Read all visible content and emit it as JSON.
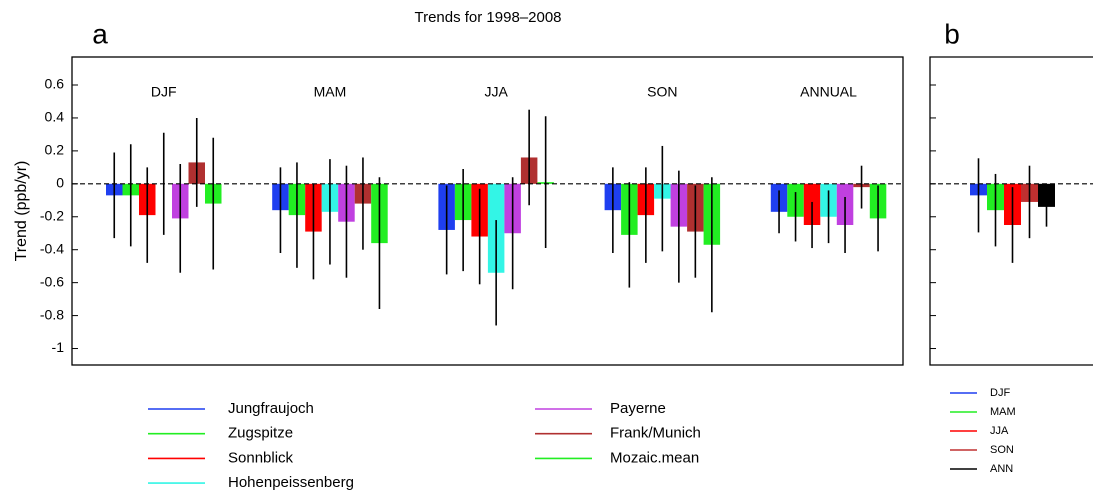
{
  "chart_data": [
    {
      "type": "bar",
      "panel_label": "a",
      "title": "Trends for 1998–2008",
      "ylabel": "Trend (ppb/yr)",
      "categories": [
        "DJF",
        "MAM",
        "JJA",
        "SON",
        "ANNUAL"
      ],
      "series": [
        {
          "name": "Jungfraujoch",
          "color": "#1f3ff0",
          "values": [
            -0.07,
            -0.16,
            -0.28,
            -0.16,
            -0.17
          ],
          "errors": [
            0.26,
            0.26,
            0.27,
            0.26,
            0.13
          ]
        },
        {
          "name": "Zugspitze",
          "color": "#22ee22",
          "values": [
            -0.07,
            -0.19,
            -0.22,
            -0.31,
            -0.2
          ],
          "errors": [
            0.31,
            0.32,
            0.31,
            0.32,
            0.15
          ]
        },
        {
          "name": "Sonnblick",
          "color": "#ff0000",
          "values": [
            -0.19,
            -0.29,
            -0.32,
            -0.19,
            -0.25
          ],
          "errors": [
            0.29,
            0.29,
            0.29,
            0.29,
            0.14
          ]
        },
        {
          "name": "Hohenpeissenberg",
          "color": "#33f5e6",
          "values": [
            0,
            -0.17,
            -0.54,
            -0.09,
            -0.2
          ],
          "errors": [
            0.31,
            0.32,
            0.32,
            0.32,
            0.16
          ]
        },
        {
          "name": "Payerne",
          "color": "#c040e0",
          "values": [
            -0.21,
            -0.23,
            -0.3,
            -0.26,
            -0.25
          ],
          "errors": [
            0.33,
            0.34,
            0.34,
            0.34,
            0.17
          ]
        },
        {
          "name": "Frank/Munich",
          "color": "#b03030",
          "values": [
            0.13,
            -0.12,
            0.16,
            -0.29,
            -0.02
          ],
          "errors": [
            0.27,
            0.28,
            0.29,
            0.28,
            0.13
          ]
        },
        {
          "name": "Mozaic.mean",
          "color": "#22ee22",
          "values": [
            -0.12,
            -0.36,
            0.01,
            -0.37,
            -0.21
          ],
          "errors": [
            0.4,
            0.4,
            0.4,
            0.41,
            0.2
          ]
        }
      ],
      "ylim": [
        -1.1,
        0.77
      ],
      "yticks": [
        -1,
        -0.8,
        -0.6,
        -0.4,
        -0.2,
        0,
        0.2,
        0.4,
        0.6
      ],
      "zero_line": "dashed",
      "legend": "bottom"
    },
    {
      "type": "bar",
      "panel_label": "b",
      "series": [
        {
          "name": "DJF",
          "color": "#1f3ff0",
          "values": [
            -0.07
          ],
          "errors": [
            0.225
          ]
        },
        {
          "name": "MAM",
          "color": "#22ee22",
          "values": [
            -0.16
          ],
          "errors": [
            0.22
          ]
        },
        {
          "name": "JJA",
          "color": "#ff0000",
          "values": [
            -0.25
          ],
          "errors": [
            0.23
          ]
        },
        {
          "name": "SON",
          "color": "#c03030",
          "values": [
            -0.11
          ],
          "errors": [
            0.22
          ]
        },
        {
          "name": "ANN",
          "color": "#000000",
          "values": [
            -0.14
          ],
          "errors": [
            0.12
          ]
        }
      ],
      "ylim": [
        -1.1,
        0.77
      ],
      "yticks": [
        -1,
        -0.8,
        -0.6,
        -0.4,
        -0.2,
        0,
        0.2,
        0.4,
        0.6
      ],
      "zero_line": "dashed",
      "legend": "bottom"
    }
  ]
}
